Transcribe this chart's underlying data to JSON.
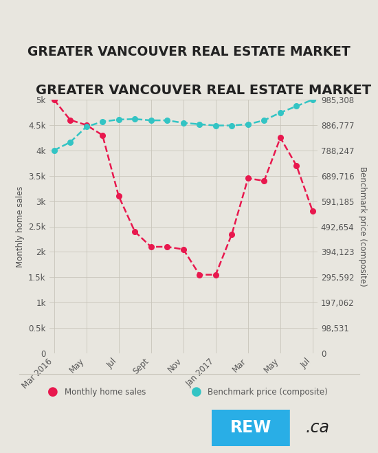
{
  "title": "GREATER VANCOUVER REAL ESTATE MARKET",
  "background_color": "#e8e6df",
  "sales_color": "#e8184e",
  "benchmark_color": "#33c4c4",
  "x_labels": [
    "Mar 2016",
    "May",
    "Jul",
    "Sept",
    "Nov",
    "Jan 2017",
    "Mar",
    "May",
    "Jul"
  ],
  "x_indices": [
    0,
    2,
    4,
    6,
    8,
    10,
    12,
    14,
    16
  ],
  "monthly_sales": [
    5000,
    4600,
    4500,
    4300,
    3100,
    2400,
    2100,
    2100,
    2050,
    1550,
    1550,
    2350,
    3450,
    3400,
    4250,
    3700,
    2800
  ],
  "benchmark_price": [
    788247,
    820000,
    880000,
    900000,
    908000,
    910000,
    905000,
    905000,
    895000,
    890000,
    885000,
    885000,
    890000,
    905000,
    935000,
    960000,
    985308
  ],
  "sales_yticks": [
    0,
    500,
    1000,
    1500,
    2000,
    2500,
    3000,
    3500,
    4000,
    4500,
    5000
  ],
  "sales_ytick_labels": [
    "0",
    "0.5k",
    "1k",
    "1.5k",
    "2k",
    "2.5k",
    "3k",
    "3.5k",
    "4k",
    "4.5k",
    "5k"
  ],
  "benchmark_yticks": [
    0,
    98531,
    197062,
    295592,
    394123,
    492654,
    591185,
    689716,
    788247,
    886777,
    985308
  ],
  "benchmark_ytick_labels": [
    "0",
    "98,531",
    "197,062",
    "295,592",
    "394,123",
    "492,654",
    "591,185",
    "689,716",
    "788,247",
    "886,777",
    "985,308"
  ],
  "ylabel_left": "Monthly home sales",
  "ylabel_right": "Benchmark price (composite)",
  "legend_sales": "Monthly home sales",
  "legend_benchmark": "Benchmark price (composite)",
  "grid_color": "#c8c5bb",
  "text_color": "#555555",
  "title_color": "#222222",
  "rew_blue": "#29aee6"
}
